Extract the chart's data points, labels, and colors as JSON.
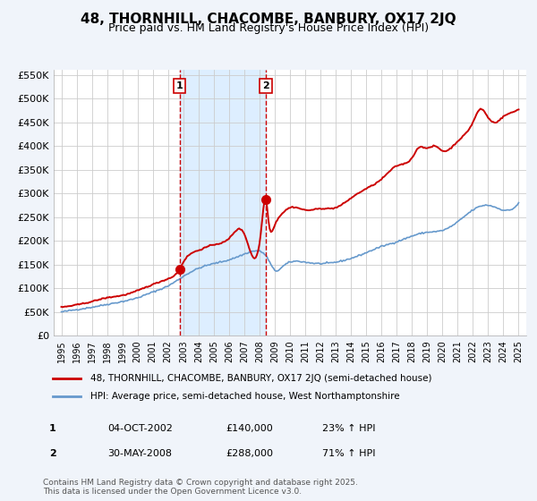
{
  "title": "48, THORNHILL, CHACOMBE, BANBURY, OX17 2JQ",
  "subtitle": "Price paid vs. HM Land Registry's House Price Index (HPI)",
  "bg_color": "#f0f4fa",
  "plot_bg_color": "#ffffff",
  "grid_color": "#cccccc",
  "red_line_color": "#cc0000",
  "blue_line_color": "#6699cc",
  "shade_color": "#ddeeff",
  "vline_color": "#cc0000",
  "marker_color": "#cc0000",
  "ylim": [
    0,
    560000
  ],
  "yticks": [
    0,
    50000,
    100000,
    150000,
    200000,
    250000,
    300000,
    350000,
    400000,
    450000,
    500000,
    550000
  ],
  "ytick_labels": [
    "£0",
    "£50K",
    "£100K",
    "£150K",
    "£200K",
    "£250K",
    "£300K",
    "£350K",
    "£400K",
    "£450K",
    "£500K",
    "£550K"
  ],
  "xlabel_years": [
    1995,
    1996,
    1997,
    1998,
    1999,
    2000,
    2001,
    2002,
    2003,
    2004,
    2005,
    2006,
    2007,
    2008,
    2009,
    2010,
    2011,
    2012,
    2013,
    2014,
    2015,
    2016,
    2017,
    2018,
    2019,
    2020,
    2021,
    2022,
    2023,
    2024,
    2025
  ],
  "vline1_x": 2002.75,
  "vline2_x": 2008.42,
  "shade_x1": 2002.75,
  "shade_x2": 2008.42,
  "marker1_x": 2002.75,
  "marker1_y": 140000,
  "marker2_x": 2008.42,
  "marker2_y": 288000,
  "legend_line1": "48, THORNHILL, CHACOMBE, BANBURY, OX17 2JQ (semi-detached house)",
  "legend_line2": "HPI: Average price, semi-detached house, West Northamptonshire",
  "table_row1": [
    "1",
    "04-OCT-2002",
    "£140,000",
    "23% ↑ HPI"
  ],
  "table_row2": [
    "2",
    "30-MAY-2008",
    "£288,000",
    "71% ↑ HPI"
  ],
  "footer": "Contains HM Land Registry data © Crown copyright and database right 2025.\nThis data is licensed under the Open Government Licence v3.0.",
  "xlim": [
    1994.5,
    2025.5
  ]
}
